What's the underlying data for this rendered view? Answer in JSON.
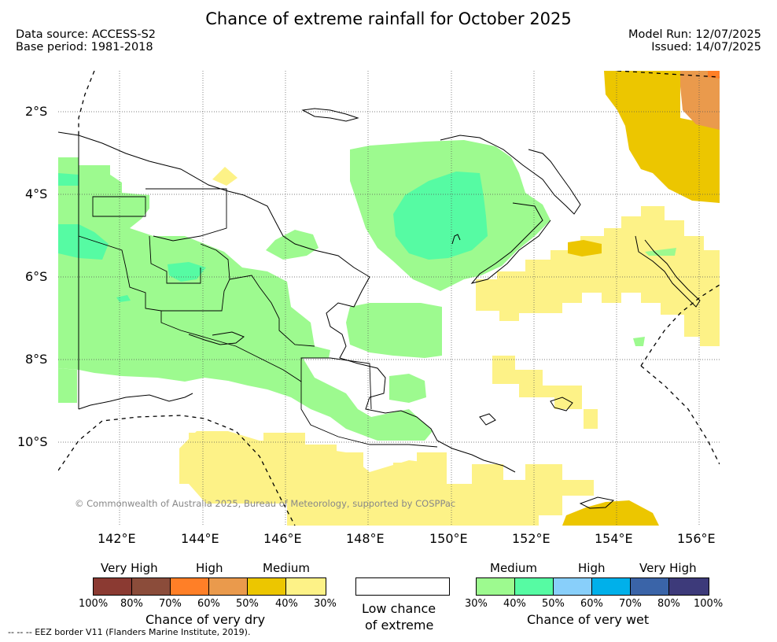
{
  "title": "Chance of extreme rainfall for October 2025",
  "meta": {
    "data_source": "Data source: ACCESS-S2",
    "base_period": "Base period: 1981-2018",
    "model_run": "Model Run: 12/07/2025",
    "issued": "Issued: 14/07/2025"
  },
  "axes": {
    "lat_labels": [
      "2°S",
      "4°S",
      "6°S",
      "8°S",
      "10°S"
    ],
    "lon_labels": [
      "142°E",
      "144°E",
      "146°E",
      "148°E",
      "150°E",
      "152°E",
      "154°E",
      "156°E"
    ]
  },
  "copyright": "© Commonwealth of Australia 2025, Bureau of Meteorology, supported by COSPPac",
  "legend": {
    "dry": {
      "categories": [
        "Very High",
        "High",
        "Medium"
      ],
      "ticks": [
        "100%",
        "80%",
        "70%",
        "60%",
        "50%",
        "40%",
        "30%"
      ],
      "colors": [
        "#8b3a32",
        "#8b4c3a",
        "#ff7f27",
        "#ea9a4c",
        "#ecc600",
        "#fdf287"
      ],
      "title": "Chance of very dry"
    },
    "low": {
      "line1": "Low chance",
      "line2": "of extreme"
    },
    "wet": {
      "categories": [
        "Medium",
        "High",
        "Very High"
      ],
      "ticks": [
        "30%",
        "40%",
        "50%",
        "60%",
        "70%",
        "80%",
        "100%"
      ],
      "colors": [
        "#9dfa8f",
        "#56fba3",
        "#88cffa",
        "#00b0ea",
        "#3a64a8",
        "#3d3a7a"
      ],
      "title": "Chance of very wet"
    }
  },
  "eez_note": "--  --  -- EEZ border V11 (Flanders Marine Institute, 2019).",
  "colors": {
    "medium_wet": "#9dfa8f",
    "high_wet": "#56fba3",
    "medium_dry": "#fdf287",
    "high_dry": "#ecc600",
    "very_high_dry_60": "#ea9a4c",
    "very_high_dry_70": "#ff7f27"
  }
}
